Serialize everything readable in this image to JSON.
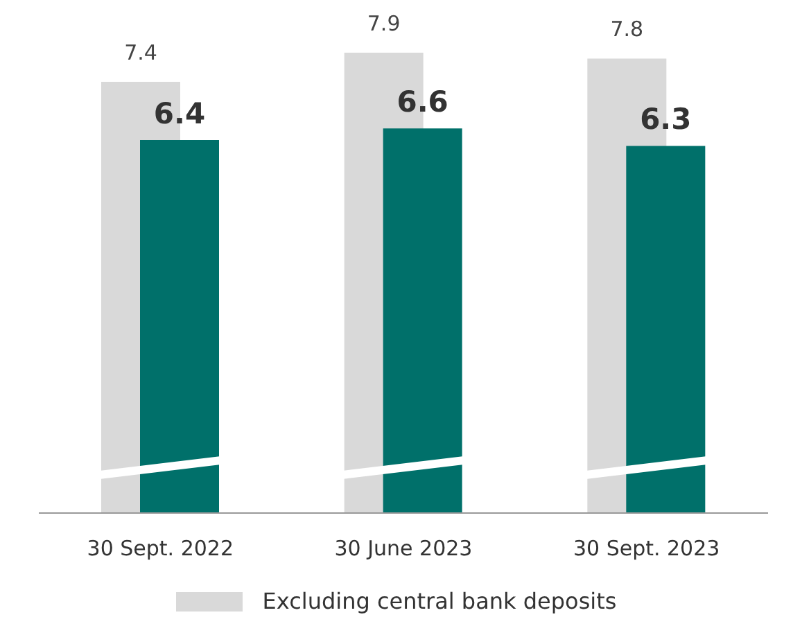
{
  "chart_data": {
    "type": "bar",
    "categories": [
      "30 Sept. 2022",
      "30 June 2023",
      "30 Sept. 2023"
    ],
    "series": [
      {
        "name": "Excluding central bank deposits",
        "color": "#d9d9d9",
        "values": [
          7.4,
          7.9,
          7.8
        ]
      },
      {
        "color": "#00706a",
        "values": [
          6.4,
          6.6,
          6.3
        ]
      }
    ],
    "data_labels": true,
    "legend": "bottom",
    "grid": false
  }
}
